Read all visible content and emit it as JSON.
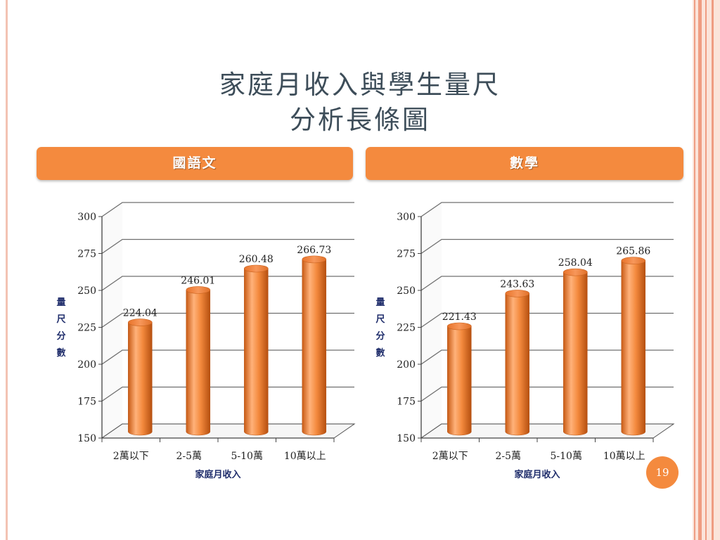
{
  "slide": {
    "title_line1": "家庭月收入與學生量尺",
    "title_line2": "分析長條圖",
    "page_number": "19"
  },
  "chart_data": [
    {
      "type": "bar",
      "header": "國語文",
      "categories": [
        "2萬以下",
        "2-5萬",
        "5-10萬",
        "10萬以上"
      ],
      "values": [
        224.04,
        246.01,
        260.48,
        266.73
      ],
      "value_labels": [
        "224.04",
        "246.01",
        "260.48",
        "266.73"
      ],
      "xlabel": "家庭月收入",
      "ylabel": "量尺分數",
      "ylim": [
        150,
        300
      ],
      "yticks": [
        "150",
        "175",
        "200",
        "225",
        "250",
        "275",
        "300"
      ],
      "grid": true,
      "style": "3d-cylinder",
      "bar_color": "#f48a3e"
    },
    {
      "type": "bar",
      "header": "數學",
      "categories": [
        "2萬以下",
        "2-5萬",
        "5-10萬",
        "10萬以上"
      ],
      "values": [
        221.43,
        243.63,
        258.04,
        265.86
      ],
      "value_labels": [
        "221.43",
        "243.63",
        "258.04",
        "265.86"
      ],
      "xlabel": "家庭月收入",
      "ylabel": "量尺分數",
      "ylim": [
        150,
        300
      ],
      "yticks": [
        "150",
        "175",
        "200",
        "225",
        "250",
        "275",
        "300"
      ],
      "grid": true,
      "style": "3d-cylinder",
      "bar_color": "#f48a3e"
    }
  ],
  "colors": {
    "accent": "#f48a3e",
    "title_text": "#3d4d59",
    "axis_label_text": "#1f2d6b",
    "frame": "#ef9d82"
  }
}
